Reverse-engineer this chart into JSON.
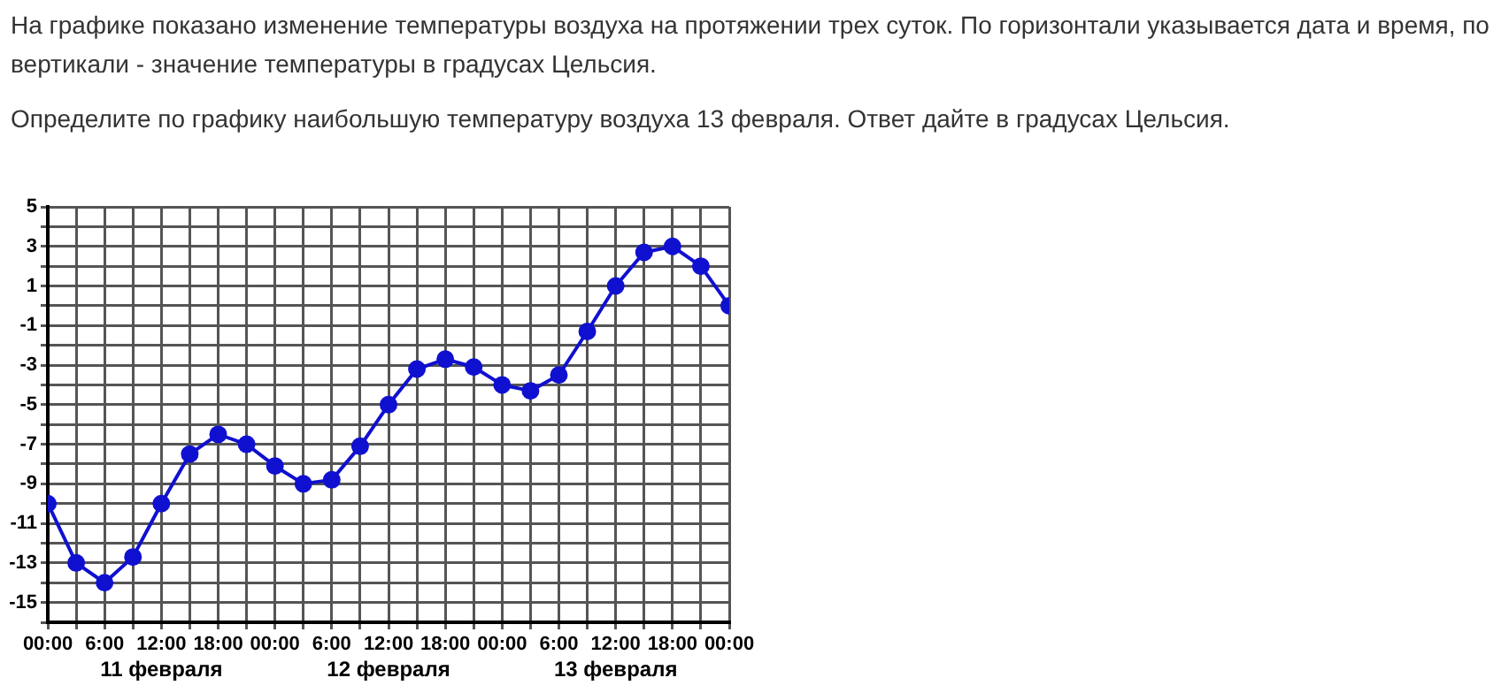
{
  "chart_data": {
    "type": "line",
    "title": "На графике показано изменение температуры воздуха на протяжении трех суток. По горизонтали указывается дата и время, по вертикали - значение температуры в градусах Цельсия.",
    "subtitle": "Определите по графику наибольшую температуру воздуха 13 февраля. Ответ дайте в градусах Цельсия.",
    "x": [
      "--02-11T00:00",
      "--02-11T03:00",
      "--02-11T06:00",
      "--02-11T09:00",
      "--02-11T12:00",
      "--02-11T15:00",
      "--02-11T18:00",
      "--02-11T21:00",
      "--02-12T00:00",
      "--02-12T03:00",
      "--02-12T06:00",
      "--02-12T09:00",
      "--02-12T12:00",
      "--02-12T15:00",
      "--02-12T18:00",
      "--02-12T21:00",
      "--02-13T00:00",
      "--02-13T03:00",
      "--02-13T06:00",
      "--02-13T09:00",
      "--02-13T12:00",
      "--02-13T15:00",
      "--02-13T18:00",
      "--02-13T21:00",
      "--02-14T00:00"
    ],
    "series": [
      {
        "color": "#1010d0",
        "values": [
          -10,
          -13,
          -14,
          -12.7,
          -10,
          -7.5,
          -6.5,
          -7,
          -8.1,
          -9,
          -8.8,
          -7.1,
          -5,
          -3.2,
          -2.7,
          -3.1,
          -4,
          -4.3,
          -3.5,
          -1.3,
          1,
          2.7,
          3,
          2,
          0
        ]
      }
    ],
    "xlim": [
      "--02-11T00:00",
      "--02-14T00:00"
    ],
    "xticks": [
      {
        "value": "--02-11T00:00",
        "label": "00:00"
      },
      {
        "value": "--02-11T03:00",
        "label": null
      },
      {
        "value": "--02-11T06:00",
        "label": "6:00"
      },
      {
        "value": "--02-11T09:00",
        "label": null
      },
      {
        "value": "--02-11T12:00",
        "label": "12:00"
      },
      {
        "value": "--02-11T15:00",
        "label": null
      },
      {
        "value": "--02-11T18:00",
        "label": "18:00"
      },
      {
        "value": "--02-11T21:00",
        "label": null
      },
      {
        "value": "--02-12T00:00",
        "label": "00:00"
      },
      {
        "value": "--02-12T03:00",
        "label": null
      },
      {
        "value": "--02-12T06:00",
        "label": "6:00"
      },
      {
        "value": "--02-12T09:00",
        "label": null
      },
      {
        "value": "--02-12T12:00",
        "label": "12:00"
      },
      {
        "value": "--02-12T15:00",
        "label": null
      },
      {
        "value": "--02-12T18:00",
        "label": "18:00"
      },
      {
        "value": "--02-12T21:00",
        "label": null
      },
      {
        "value": "--02-13T00:00",
        "label": "00:00"
      },
      {
        "value": "--02-13T03:00",
        "label": null
      },
      {
        "value": "--02-13T06:00",
        "label": "6:00"
      },
      {
        "value": "--02-13T09:00",
        "label": null
      },
      {
        "value": "--02-13T12:00",
        "label": "12:00"
      },
      {
        "value": "--02-13T15:00",
        "label": null
      },
      {
        "value": "--02-13T18:00",
        "label": "18:00"
      },
      {
        "value": "--02-13T21:00",
        "label": null
      },
      {
        "value": "--02-14T00:00",
        "label": "00:00"
      }
    ],
    "ylim": [
      -16,
      5
    ],
    "yticks": [
      {
        "value": -16,
        "label": null
      },
      -15,
      {
        "value": -14,
        "label": null
      },
      -13,
      {
        "value": -12,
        "label": null
      },
      -11,
      {
        "value": -10,
        "label": null
      },
      -9,
      {
        "value": -8,
        "label": null
      },
      -7,
      {
        "value": -6,
        "label": null
      },
      -5,
      {
        "value": -4,
        "label": null
      },
      -3,
      {
        "value": -2,
        "label": null
      },
      -1,
      {
        "value": 0,
        "label": null
      },
      1,
      {
        "value": 2,
        "label": null
      },
      3,
      {
        "value": 4,
        "label": null
      },
      5
    ],
    "annotations": [
      "11 февраля",
      "12 февраля",
      "13 февраля"
    ],
    "grid": true,
    "legend": false,
    "marker": "circle"
  }
}
